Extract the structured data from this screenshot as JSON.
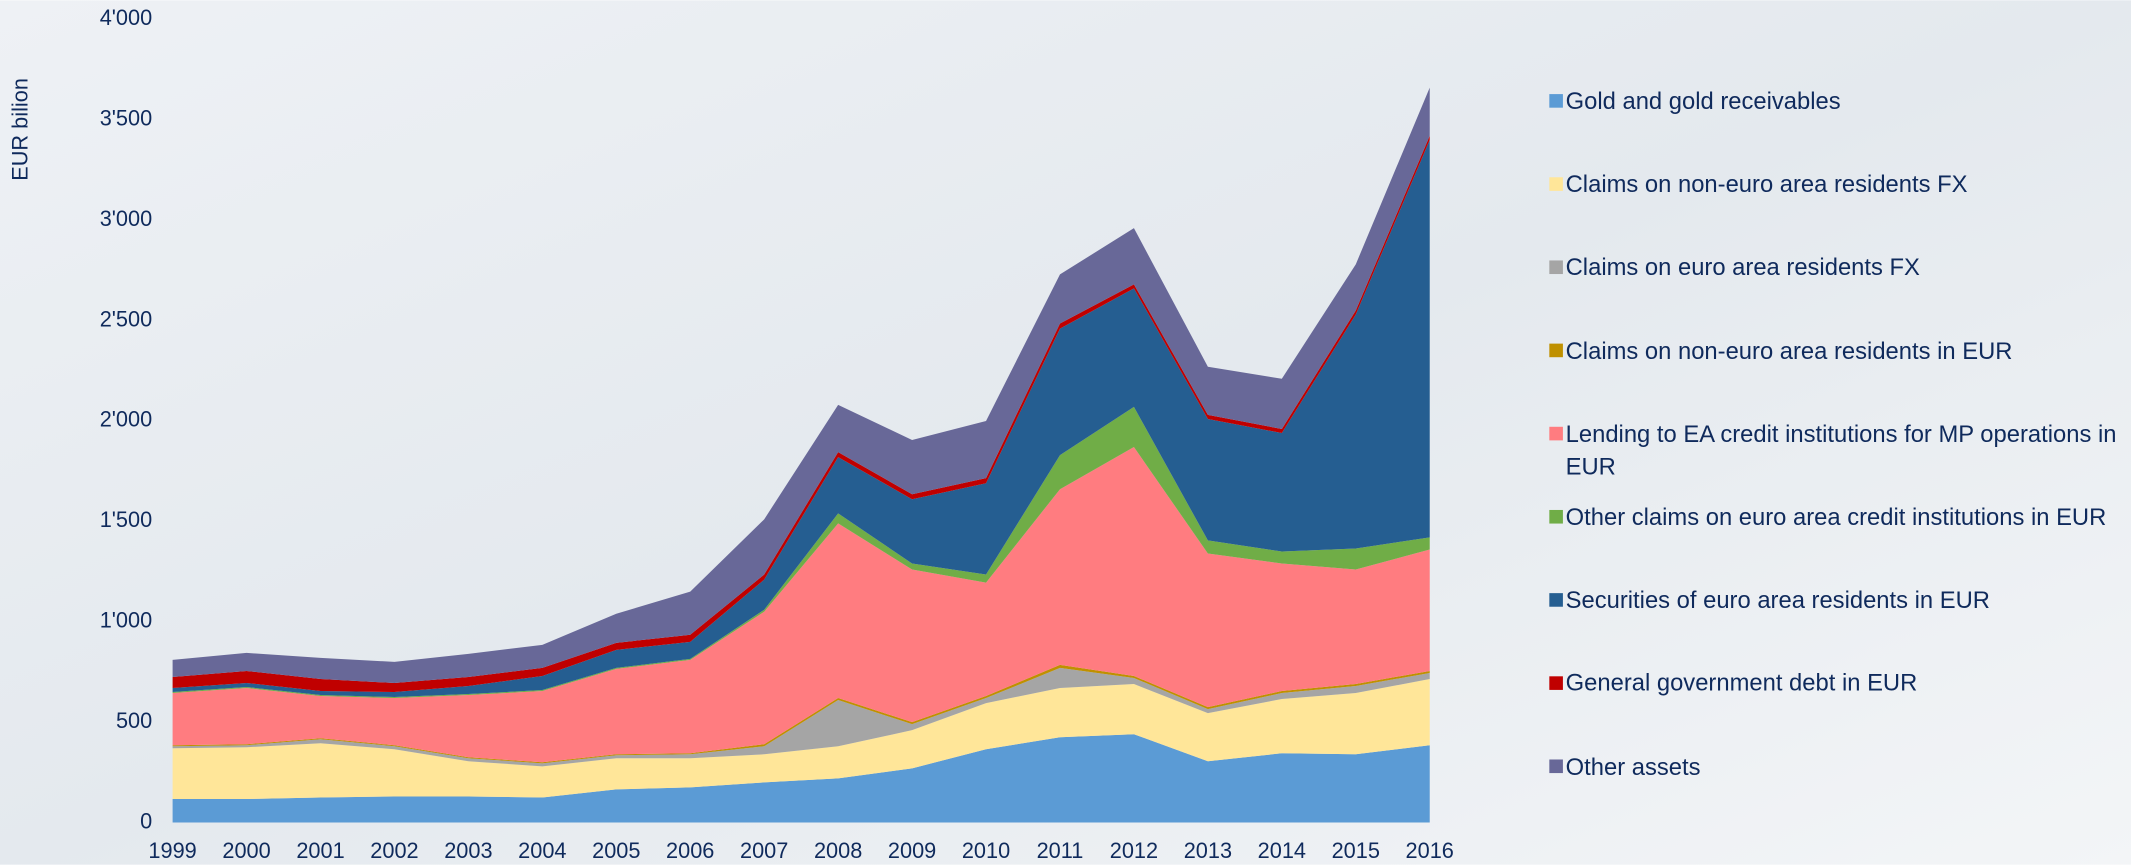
{
  "chart_data": {
    "type": "stacked_area",
    "y_label": "EUR bilion",
    "categories": [
      "1999",
      "2000",
      "2001",
      "2002",
      "2003",
      "2004",
      "2005",
      "2006",
      "2007",
      "2008",
      "2009",
      "2010",
      "2011",
      "2012",
      "2013",
      "2014",
      "2015",
      "2016"
    ],
    "ylim": [
      0,
      4000
    ],
    "yticks": [
      0,
      500,
      {
        "value": 1000,
        "label": "1'000"
      },
      {
        "value": 1500,
        "label": "1'500"
      },
      {
        "value": 2000,
        "label": "2'000"
      },
      {
        "value": 2500,
        "label": "2'500"
      },
      {
        "value": 3000,
        "label": "3'000"
      },
      {
        "value": 3500,
        "label": "3'500"
      },
      {
        "value": 4000,
        "label": "4'000"
      }
    ],
    "series": [
      {
        "name": "Gold and gold receivables",
        "color": "#5b9bd5",
        "values": [
          117,
          117,
          125,
          130,
          130,
          125,
          165,
          175,
          200,
          220,
          270,
          365,
          425,
          440,
          305,
          345,
          340,
          385
        ]
      },
      {
        "name": "Claims on non-euro area residents FX",
        "color": "#ffe699",
        "values": [
          253,
          258,
          270,
          235,
          175,
          155,
          155,
          145,
          140,
          160,
          190,
          230,
          245,
          250,
          240,
          270,
          305,
          330
        ]
      },
      {
        "name": "Claims on euro area residents FX",
        "color": "#a5a5a5",
        "values": [
          10,
          10,
          20,
          15,
          15,
          15,
          15,
          20,
          40,
          230,
          30,
          25,
          100,
          30,
          20,
          30,
          35,
          30
        ]
      },
      {
        "name": "Claims on non-euro area residents in EUR",
        "color": "#bf9000",
        "values": [
          5,
          5,
          5,
          5,
          5,
          5,
          5,
          5,
          10,
          10,
          10,
          10,
          15,
          10,
          10,
          10,
          10,
          10
        ]
      },
      {
        "name": "Lending to EA credit institutions for MP operations in EUR",
        "color": "#ff7c80",
        "values": [
          260,
          280,
          210,
          235,
          310,
          355,
          425,
          465,
          660,
          870,
          760,
          565,
          875,
          1140,
          765,
          635,
          570,
          605
        ]
      },
      {
        "name": "Other claims on euro area credit institutions in EUR",
        "color": "#70ad47",
        "values": [
          5,
          5,
          5,
          5,
          5,
          5,
          5,
          5,
          10,
          50,
          30,
          40,
          170,
          200,
          65,
          60,
          105,
          60
        ]
      },
      {
        "name": "Securities of euro area residents in EUR",
        "color": "#255e91",
        "values": [
          20,
          20,
          20,
          25,
          40,
          70,
          90,
          85,
          150,
          280,
          320,
          455,
          630,
          590,
          605,
          590,
          1165,
          1980
        ]
      },
      {
        "name": "General government debt in EUR",
        "color": "#c00000",
        "values": [
          55,
          60,
          60,
          45,
          45,
          40,
          35,
          35,
          25,
          25,
          25,
          25,
          25,
          20,
          20,
          20,
          20,
          20
        ]
      },
      {
        "name": "Other assets",
        "color": "#686898",
        "values": [
          85,
          90,
          105,
          105,
          115,
          115,
          145,
          215,
          275,
          235,
          270,
          285,
          245,
          280,
          240,
          250,
          230,
          240
        ]
      }
    ]
  }
}
